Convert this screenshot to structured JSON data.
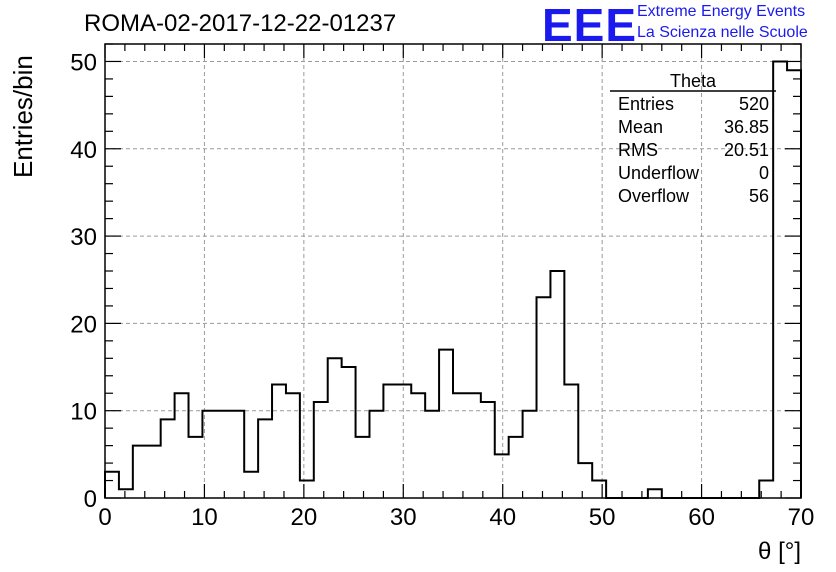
{
  "header": {
    "title": "ROMA-02-2017-12-22-01237",
    "logo_text": "EEE",
    "logo_line1": "Extreme Energy Events",
    "logo_line2": "La Scienza nelle Scuole",
    "logo_color": "#1a1aee"
  },
  "stats": {
    "name": "Theta",
    "rows": [
      {
        "label": "Entries",
        "value": "520"
      },
      {
        "label": "Mean",
        "value": "36.85"
      },
      {
        "label": "RMS",
        "value": "20.51"
      },
      {
        "label": "Underflow",
        "value": "0"
      },
      {
        "label": "Overflow",
        "value": "56"
      }
    ]
  },
  "chart_data": {
    "type": "bar",
    "style": "step-histogram",
    "title": "ROMA-02-2017-12-22-01237",
    "xlabel": "θ [°]",
    "ylabel": "Entries/bin",
    "xlim": [
      0,
      70
    ],
    "ylim": [
      0,
      52
    ],
    "bin_width": 1.4,
    "bin_edges_start": 0,
    "xticks": [
      0,
      10,
      20,
      30,
      40,
      50,
      60,
      70
    ],
    "yticks": [
      0,
      10,
      20,
      30,
      40,
      50
    ],
    "values": [
      3,
      1,
      6,
      6,
      9,
      12,
      7,
      10,
      10,
      10,
      3,
      9,
      13,
      12,
      2,
      11,
      16,
      15,
      7,
      10,
      13,
      13,
      12,
      10,
      17,
      12,
      12,
      11,
      5,
      7,
      10,
      23,
      26,
      13,
      4,
      2,
      0,
      0,
      0,
      1,
      0,
      0,
      0,
      0,
      0,
      0,
      0,
      2,
      50,
      49
    ],
    "grid": true,
    "line_color": "#000000",
    "grid_color": "#9a9a9a"
  }
}
